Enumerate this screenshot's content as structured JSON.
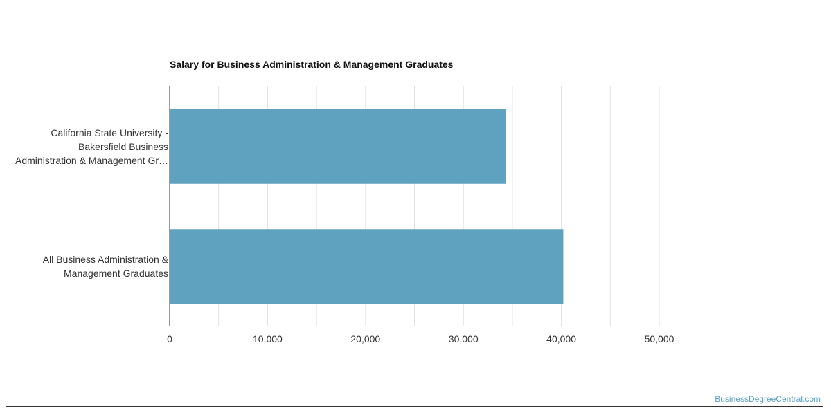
{
  "chart_data": {
    "type": "bar",
    "orientation": "horizontal",
    "title": "Salary for Business Administration & Management Graduates",
    "categories": [
      "California State University -\nBakersfield Business\nAdministration & Management Gr…",
      "All Business Administration &\nManagement Graduates"
    ],
    "values": [
      34300,
      40200
    ],
    "xlim": [
      0,
      50000
    ],
    "ticks": [
      "0",
      "10,000",
      "20,000",
      "30,000",
      "40,000",
      "50,000"
    ],
    "tick_values": [
      0,
      10000,
      20000,
      30000,
      40000,
      50000
    ],
    "grid": true,
    "bar_color": "#5ea2bf"
  },
  "watermark": "BusinessDegreeCentral.com"
}
